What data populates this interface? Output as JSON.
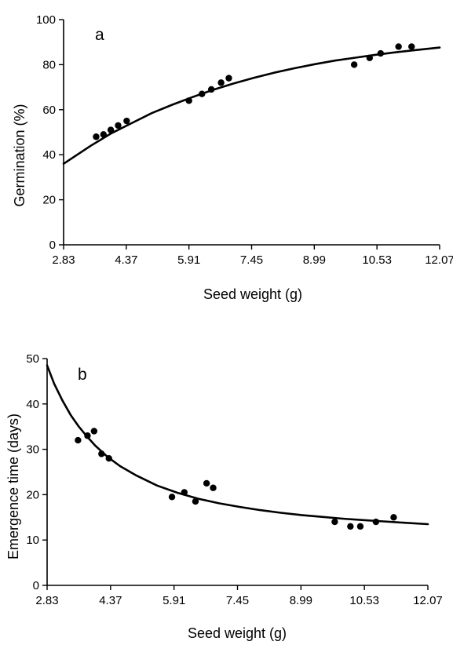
{
  "chart_data": [
    {
      "type": "scatter",
      "panel_label": "a",
      "title": "",
      "xlabel": "Seed weight (g)",
      "ylabel": "Germination (%)",
      "xlim": [
        2.83,
        12.07
      ],
      "ylim": [
        0,
        100
      ],
      "x_ticks": [
        "2.83",
        "4.37",
        "5.91",
        "7.45",
        "8.99",
        "10.53",
        "12.07"
      ],
      "y_ticks": [
        "0",
        "20",
        "40",
        "60",
        "80",
        "100"
      ],
      "grid": false,
      "points": {
        "x": [
          3.63,
          3.81,
          3.99,
          4.17,
          4.38,
          5.91,
          6.23,
          6.46,
          6.7,
          6.89,
          9.97,
          10.35,
          10.62,
          11.06,
          11.38
        ],
        "y": [
          48,
          49,
          51,
          53,
          55,
          64,
          67,
          69,
          72,
          74,
          80,
          83,
          85,
          88,
          88
        ]
      },
      "fit_curve": {
        "x": [
          2.83,
          3.5,
          4.0,
          4.5,
          5.0,
          5.5,
          6.0,
          6.5,
          7.0,
          7.5,
          8.0,
          8.5,
          9.0,
          9.5,
          10.0,
          10.5,
          11.0,
          11.5,
          12.07
        ],
        "y": [
          36,
          44,
          49.5,
          54,
          58.5,
          62.2,
          65.6,
          68.8,
          71.6,
          74.1,
          76.4,
          78.4,
          80.2,
          81.8,
          83.1,
          84.4,
          85.5,
          86.5,
          87.6
        ]
      }
    },
    {
      "type": "scatter",
      "panel_label": "b",
      "title": "",
      "xlabel": "Seed weight (g)",
      "ylabel": "Emergence time (days)",
      "xlim": [
        2.83,
        12.07
      ],
      "ylim": [
        0,
        50
      ],
      "x_ticks": [
        "2.83",
        "4.37",
        "5.91",
        "7.45",
        "8.99",
        "10.53",
        "12.07"
      ],
      "y_ticks": [
        "0",
        "10",
        "20",
        "30",
        "40",
        "50"
      ],
      "grid": false,
      "points": {
        "x": [
          3.58,
          3.81,
          3.97,
          4.15,
          4.33,
          5.86,
          6.16,
          6.43,
          6.7,
          6.86,
          9.81,
          10.19,
          10.43,
          10.81,
          11.24
        ],
        "y": [
          32,
          33,
          34,
          29,
          28,
          19.5,
          20.5,
          18.5,
          22.5,
          21.5,
          14,
          13,
          13,
          14,
          15
        ]
      },
      "fit_curve": {
        "x": [
          2.83,
          3.0,
          3.2,
          3.4,
          3.6,
          3.8,
          4.0,
          4.3,
          4.6,
          5.0,
          5.5,
          6.0,
          6.5,
          7.0,
          7.5,
          8.0,
          8.5,
          9.0,
          9.5,
          10.0,
          10.5,
          11.0,
          11.5,
          12.07
        ],
        "y": [
          48.5,
          44.5,
          40.8,
          37.6,
          35.0,
          32.8,
          30.8,
          28.3,
          26.3,
          24.2,
          22.0,
          20.4,
          19.1,
          18.1,
          17.3,
          16.6,
          16.0,
          15.5,
          15.1,
          14.7,
          14.4,
          14.1,
          13.8,
          13.5
        ]
      }
    }
  ]
}
